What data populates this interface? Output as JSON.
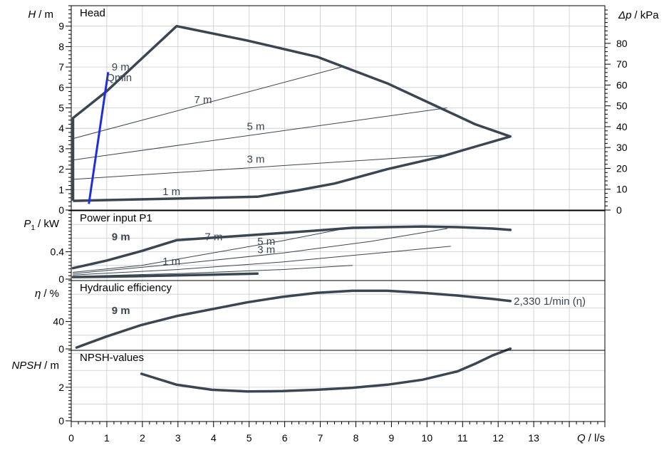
{
  "colors": {
    "curve": "#3a4651",
    "qmin": "#1f2fdc",
    "grid": "#cccccc",
    "axis": "#000000",
    "label": "#3a4651"
  },
  "x_axis": {
    "symbol": "Q",
    "unit": "/ l/s",
    "ticks": [
      "0",
      "1",
      "2",
      "3",
      "4",
      "5",
      "6",
      "7",
      "8",
      "9",
      "10",
      "11",
      "12",
      "13"
    ]
  },
  "chart_data": [
    {
      "type": "line",
      "title": "Head",
      "ylabel_symbol": "H",
      "ylabel_unit": "/ m",
      "y2label_symbol": "Δp",
      "y2label_unit": "/ kPa",
      "xlim": [
        0,
        15
      ],
      "ylim": [
        0,
        10
      ],
      "y_ticks": [
        "0",
        "1",
        "2",
        "3",
        "4",
        "5",
        "6",
        "7",
        "8",
        "9"
      ],
      "y_tick_values": [
        0,
        1,
        2,
        3,
        4,
        5,
        6,
        7,
        8,
        9
      ],
      "y2_ticks": [
        "0",
        "10",
        "20",
        "30",
        "40",
        "50",
        "60",
        "70",
        "80"
      ],
      "y2_tick_values": [
        0,
        10,
        20,
        30,
        40,
        50,
        60,
        70,
        80
      ],
      "envelope": [
        [
          0.05,
          0.45
        ],
        [
          0.05,
          4.5
        ],
        [
          1.0,
          5.8
        ],
        [
          3.0,
          9.0
        ],
        [
          5.0,
          8.3
        ],
        [
          7.0,
          7.5
        ],
        [
          9.0,
          6.2
        ],
        [
          10.5,
          5.0
        ],
        [
          11.5,
          4.2
        ],
        [
          12.5,
          3.6
        ],
        [
          11.5,
          3.1
        ],
        [
          10.5,
          2.6
        ],
        [
          9.0,
          2.0
        ],
        [
          7.5,
          1.3
        ],
        [
          6.5,
          0.98
        ],
        [
          5.3,
          0.65
        ],
        [
          3.0,
          0.56
        ],
        [
          0.05,
          0.45
        ]
      ],
      "qmin": {
        "label": "Qmin",
        "points": [
          [
            0.5,
            0.3
          ],
          [
            1.05,
            6.75
          ]
        ]
      },
      "control_lines": [
        {
          "label": "7 m",
          "points": [
            [
              0.05,
              3.5
            ],
            [
              7.7,
              7.0
            ]
          ]
        },
        {
          "label": "5 m",
          "points": [
            [
              0.05,
              2.45
            ],
            [
              10.7,
              5.0
            ]
          ]
        },
        {
          "label": "3 m",
          "points": [
            [
              0.05,
              1.5
            ],
            [
              10.7,
              2.7
            ]
          ]
        }
      ],
      "labels": [
        {
          "text": "9 m",
          "x": 1.15,
          "y": 7.0
        },
        {
          "text": "7 m",
          "x": 3.5,
          "y": 5.4
        },
        {
          "text": "5 m",
          "x": 5.0,
          "y": 4.1
        },
        {
          "text": "3 m",
          "x": 5.0,
          "y": 2.5
        },
        {
          "text": "1 m",
          "x": 2.6,
          "y": 0.9
        }
      ]
    },
    {
      "type": "line",
      "title": "Power input P1",
      "ylabel_symbol": "P",
      "ylabel_sub": "1",
      "ylabel_unit": "/ kW",
      "xlim": [
        0,
        15
      ],
      "ylim": [
        0,
        1.0
      ],
      "y_ticks": [
        "0",
        "0.4"
      ],
      "y_tick_values": [
        0,
        0.4
      ],
      "series": [
        {
          "name": "9 m",
          "bold": true,
          "values": [
            [
              0.05,
              0.16
            ],
            [
              1.0,
              0.27
            ],
            [
              2.0,
              0.41
            ],
            [
              3.0,
              0.57
            ],
            [
              5.0,
              0.64
            ],
            [
              7.0,
              0.71
            ],
            [
              8.0,
              0.75
            ],
            [
              9.0,
              0.76
            ],
            [
              10.0,
              0.77
            ],
            [
              11.0,
              0.76
            ],
            [
              12.0,
              0.74
            ],
            [
              12.5,
              0.72
            ]
          ]
        },
        {
          "name": "1 m",
          "bold": true,
          "values": [
            [
              0.05,
              0.03
            ],
            [
              1.0,
              0.035
            ],
            [
              2.0,
              0.045
            ],
            [
              3.0,
              0.055
            ],
            [
              4.0,
              0.065
            ],
            [
              5.3,
              0.08
            ]
          ]
        },
        {
          "name": "7 m",
          "bold": false,
          "values": [
            [
              0.05,
              0.1
            ],
            [
              2.0,
              0.2
            ],
            [
              4.0,
              0.38
            ],
            [
              6.0,
              0.56
            ],
            [
              7.7,
              0.73
            ]
          ]
        },
        {
          "name": "5 m",
          "bold": false,
          "values": [
            [
              0.05,
              0.08
            ],
            [
              3.0,
              0.22
            ],
            [
              6.0,
              0.38
            ],
            [
              8.5,
              0.55
            ],
            [
              10.7,
              0.74
            ]
          ]
        },
        {
          "name": "3 m",
          "bold": false,
          "values": [
            [
              0.05,
              0.06
            ],
            [
              3.0,
              0.14
            ],
            [
              6.0,
              0.25
            ],
            [
              8.5,
              0.37
            ],
            [
              10.8,
              0.48
            ]
          ]
        },
        {
          "name": "1 m thin",
          "bold": false,
          "values": [
            [
              0.05,
              0.04
            ],
            [
              3.0,
              0.08
            ],
            [
              6.0,
              0.14
            ],
            [
              8.0,
              0.2
            ]
          ]
        }
      ],
      "labels": [
        {
          "text": "9 m",
          "x": 1.15,
          "y": 0.62
        },
        {
          "text": "7 m",
          "x": 3.8,
          "y": 0.62
        },
        {
          "text": "5 m",
          "x": 5.3,
          "y": 0.55
        },
        {
          "text": "3 m",
          "x": 5.3,
          "y": 0.43
        },
        {
          "text": "1 m",
          "x": 2.6,
          "y": 0.26
        }
      ]
    },
    {
      "type": "line",
      "title": "Hydraulic efficiency",
      "ylabel_symbol": "η",
      "ylabel_unit": "/ %",
      "xlim": [
        0,
        15
      ],
      "ylim": [
        0,
        100
      ],
      "y_ticks": [
        "0",
        "40"
      ],
      "y_tick_values": [
        0,
        40
      ],
      "series": [
        {
          "name": "9 m",
          "bold": true,
          "values": [
            [
              0.15,
              2
            ],
            [
              1.0,
              18
            ],
            [
              2.0,
              35
            ],
            [
              3.0,
              48
            ],
            [
              4.0,
              58
            ],
            [
              5.0,
              68
            ],
            [
              6.0,
              76
            ],
            [
              7.0,
              82
            ],
            [
              8.0,
              85
            ],
            [
              9.0,
              85
            ],
            [
              10.0,
              82
            ],
            [
              11.0,
              78
            ],
            [
              12.0,
              73
            ],
            [
              12.5,
              70
            ]
          ]
        }
      ],
      "labels": [
        {
          "text": "9 m",
          "x": 1.15,
          "y": 56
        },
        {
          "text": "2,330 1/min (η)",
          "x": 12.6,
          "y": 70
        }
      ]
    },
    {
      "type": "line",
      "title": "NPSH-values",
      "ylabel_symbol": "NPSH",
      "ylabel_unit": "/ m",
      "xlim": [
        0,
        15
      ],
      "ylim": [
        0,
        4.2
      ],
      "y_ticks": [
        "0",
        "2"
      ],
      "y_tick_values": [
        0,
        2
      ],
      "series": [
        {
          "name": "NPSH",
          "bold": true,
          "values": [
            [
              2.0,
              2.8
            ],
            [
              3.0,
              2.15
            ],
            [
              4.0,
              1.85
            ],
            [
              5.0,
              1.75
            ],
            [
              6.0,
              1.77
            ],
            [
              7.0,
              1.85
            ],
            [
              8.0,
              1.97
            ],
            [
              9.0,
              2.15
            ],
            [
              10.0,
              2.45
            ],
            [
              11.0,
              2.95
            ],
            [
              11.5,
              3.4
            ],
            [
              12.0,
              3.9
            ],
            [
              12.5,
              4.3
            ]
          ]
        }
      ]
    }
  ]
}
